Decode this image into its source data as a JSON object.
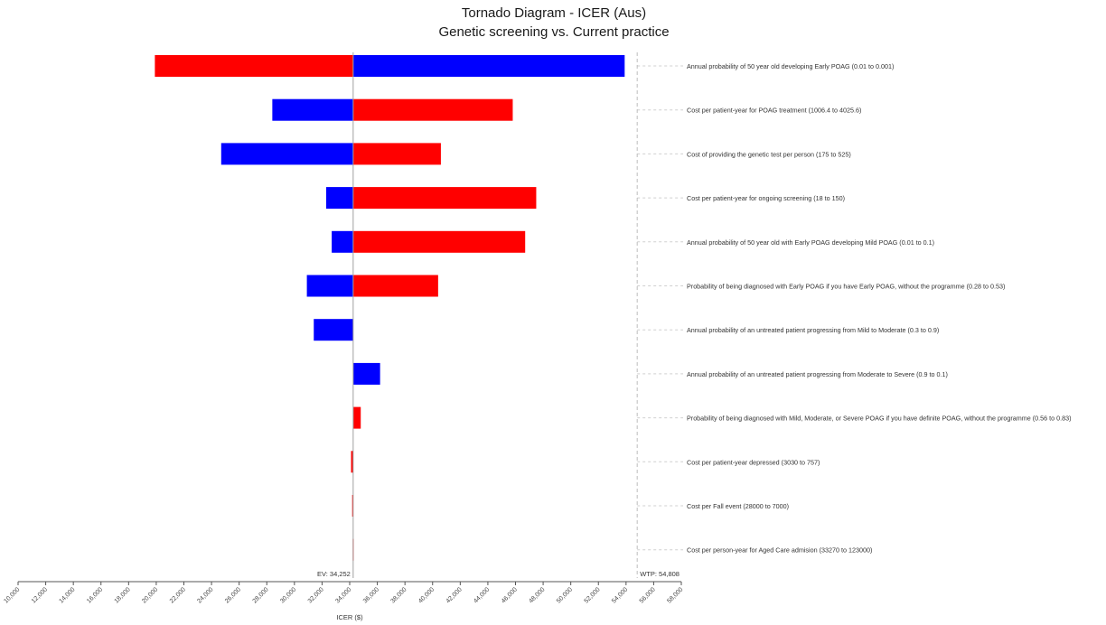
{
  "chart_data": {
    "type": "bar",
    "orientation": "horizontal",
    "subtype": "tornado",
    "title": "Tornado Diagram - ICER (Aus)",
    "subtitle": "Genetic screening vs. Current practice",
    "xlabel": "ICER ($)",
    "xlim": [
      10000,
      58000
    ],
    "xticks": [
      10000,
      12000,
      14000,
      16000,
      18000,
      20000,
      22000,
      24000,
      26000,
      28000,
      30000,
      32000,
      34000,
      36000,
      38000,
      40000,
      42000,
      44000,
      46000,
      48000,
      50000,
      52000,
      54000,
      56000,
      58000
    ],
    "xtick_labels": [
      "10,000",
      "12,000",
      "14,000",
      "16,000",
      "18,000",
      "20,000",
      "22,000",
      "24,000",
      "26,000",
      "28,000",
      "30,000",
      "32,000",
      "34,000",
      "36,000",
      "38,000",
      "40,000",
      "42,000",
      "44,000",
      "46,000",
      "48,000",
      "50,000",
      "52,000",
      "54,000",
      "56,000",
      "58,000"
    ],
    "ev": 34252,
    "ev_label": "EV: 34,252",
    "wtp": 54808,
    "wtp_label": "WTP: 54,808",
    "colors": {
      "red": "#ff0000",
      "blue": "#0000ff"
    },
    "bars": [
      {
        "label": "Annual probability of 50 year old developing Early POAG (0.01 to 0.001)",
        "left": 19900,
        "right": 53900,
        "left_color": "red",
        "right_color": "blue"
      },
      {
        "label": "Cost per patient-year for POAG treatment (1006.4 to 4025.6)",
        "left": 28400,
        "right": 45800,
        "left_color": "blue",
        "right_color": "red"
      },
      {
        "label": "Cost of providing the genetic test per person (175 to 525)",
        "left": 24700,
        "right": 40600,
        "left_color": "blue",
        "right_color": "red"
      },
      {
        "label": "Cost per patient-year for ongoing screening (18 to 150)",
        "left": 32300,
        "right": 47500,
        "left_color": "blue",
        "right_color": "red"
      },
      {
        "label": "Annual probability of 50 year old with Early POAG developing Mild POAG (0.01 to 0.1)",
        "left": 32700,
        "right": 46700,
        "left_color": "blue",
        "right_color": "red"
      },
      {
        "label": "Probability of being diagnosed with Early POAG if you have Early POAG, without the programme (0.28 to 0.53)",
        "left": 30900,
        "right": 40400,
        "left_color": "blue",
        "right_color": "red"
      },
      {
        "label": "Annual probability of an untreated patient progressing from Mild to Moderate (0.3 to 0.9)",
        "left": 31400,
        "right": 34252,
        "left_color": "blue",
        "right_color": "blue"
      },
      {
        "label": "Annual probability of an untreated patient progressing from Moderate to Severe (0.9 to 0.1)",
        "left": 34252,
        "right": 36200,
        "left_color": "blue",
        "right_color": "blue"
      },
      {
        "label": "Probability of being diagnosed with Mild, Moderate, or Severe POAG if you have definite POAG, without the programme (0.56 to 0.83)",
        "left": 34252,
        "right": 34800,
        "left_color": "red",
        "right_color": "red"
      },
      {
        "label": "Cost per patient-year depressed (3030 to 757)",
        "left": 34100,
        "right": 34252,
        "left_color": "red",
        "right_color": "red"
      },
      {
        "label": "Cost per Fall event (28000 to 7000)",
        "left": 34180,
        "right": 34252,
        "left_color": "red",
        "right_color": "red"
      },
      {
        "label": "Cost per person-year for Aged Care admision (33270 to 123000)",
        "left": 34220,
        "right": 34252,
        "left_color": "red",
        "right_color": "red"
      }
    ]
  }
}
